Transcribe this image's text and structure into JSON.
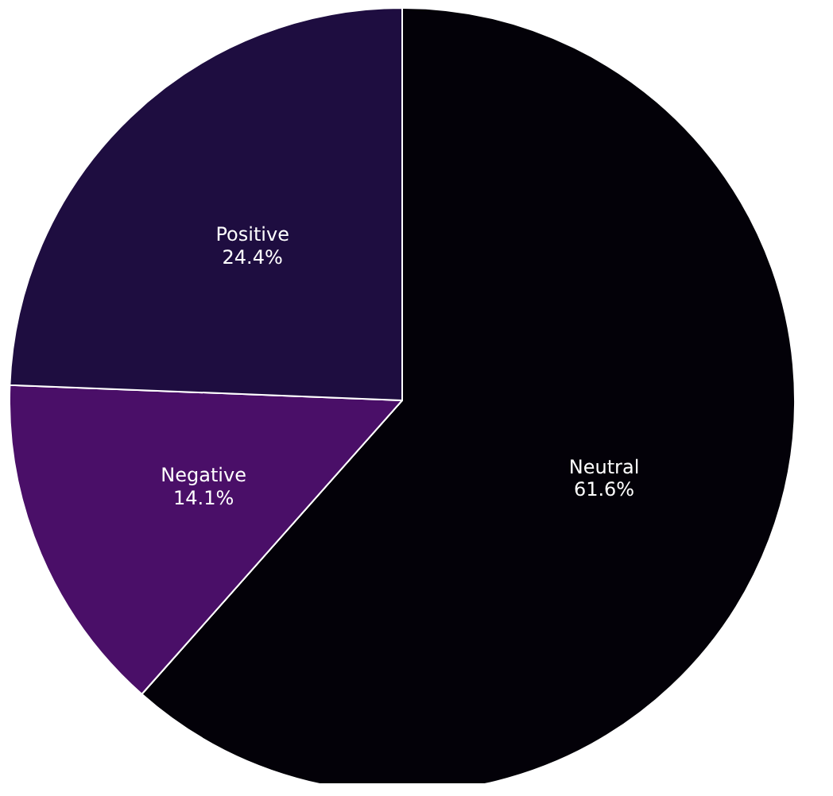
{
  "chart_data": {
    "type": "pie",
    "categories": [
      "Neutral",
      "Negative",
      "Positive"
    ],
    "values": [
      61.6,
      14.1,
      24.4
    ],
    "colors": [
      "#030108",
      "#4a0f68",
      "#1e0d40"
    ],
    "value_labels": [
      "61.6%",
      "14.1%",
      "24.4%"
    ]
  }
}
